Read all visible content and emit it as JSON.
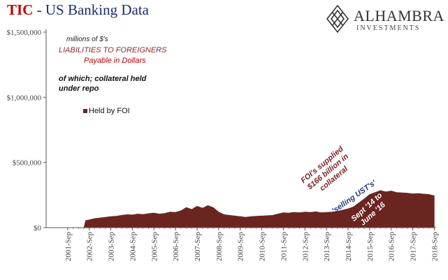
{
  "title": {
    "prefix": "TIC",
    "rest": "- US Banking Data"
  },
  "logo": {
    "brand": "ALHAMBRA",
    "sub": "INVESTMENTS",
    "icon": "diamond-lattice-icon"
  },
  "notes": {
    "units": "millions of $'s",
    "liabilities": "LIABILITIES TO FOREIGNERS",
    "payable": "Payable in Dollars",
    "collateral_line1": "of which; collateral held",
    "collateral_line2": "under repo"
  },
  "annotations": {
    "foi_supplied": [
      "FOI's supplied",
      "$166 billion in",
      "collateral"
    ],
    "selling_usts": "'selling UST's'",
    "period": [
      "Sept '14 to",
      "June '16"
    ]
  },
  "colors": {
    "series": "#6b2520",
    "title_red": "#c00000",
    "title_navy": "#1f2a6b",
    "note_red": "#8b2a2a",
    "note_navy": "#1f3a7a"
  },
  "chart_data": {
    "type": "area",
    "x": [
      "2001-Sep",
      "2002-Sep",
      "2003-Sep",
      "2004-Sep",
      "2005-Sep",
      "2006-Sep",
      "2007-Sep",
      "2008-Sep",
      "2009-Sep",
      "2010-Sep",
      "2011-Sep",
      "2012-Sep",
      "2013-Sep",
      "2014-Sep",
      "2015-Sep",
      "2016-Sep",
      "2017-Sep",
      "2018-Sep"
    ],
    "series": [
      {
        "name": "Held by FOI",
        "points": [
          [
            "2002-Jun",
            0
          ],
          [
            "2002-Jul",
            55000
          ],
          [
            "2002-Sep",
            60000
          ],
          [
            "2002-Dec",
            70000
          ],
          [
            "2003-Mar",
            75000
          ],
          [
            "2003-Jun",
            80000
          ],
          [
            "2003-Sep",
            85000
          ],
          [
            "2003-Dec",
            88000
          ],
          [
            "2004-Mar",
            95000
          ],
          [
            "2004-Jun",
            100000
          ],
          [
            "2004-Sep",
            98000
          ],
          [
            "2004-Dec",
            105000
          ],
          [
            "2005-Mar",
            102000
          ],
          [
            "2005-Jun",
            108000
          ],
          [
            "2005-Sep",
            112000
          ],
          [
            "2005-Dec",
            105000
          ],
          [
            "2006-Mar",
            110000
          ],
          [
            "2006-Jun",
            120000
          ],
          [
            "2006-Sep",
            118000
          ],
          [
            "2006-Dec",
            130000
          ],
          [
            "2007-Mar",
            155000
          ],
          [
            "2007-Jun",
            140000
          ],
          [
            "2007-Sep",
            165000
          ],
          [
            "2007-Dec",
            150000
          ],
          [
            "2008-Mar",
            170000
          ],
          [
            "2008-Jun",
            155000
          ],
          [
            "2008-Sep",
            120000
          ],
          [
            "2008-Dec",
            100000
          ],
          [
            "2009-Mar",
            95000
          ],
          [
            "2009-Jun",
            90000
          ],
          [
            "2009-Sep",
            85000
          ],
          [
            "2009-Dec",
            80000
          ],
          [
            "2010-Mar",
            85000
          ],
          [
            "2010-Jun",
            88000
          ],
          [
            "2010-Sep",
            90000
          ],
          [
            "2010-Dec",
            92000
          ],
          [
            "2011-Mar",
            95000
          ],
          [
            "2011-Jun",
            105000
          ],
          [
            "2011-Sep",
            115000
          ],
          [
            "2011-Dec",
            112000
          ],
          [
            "2012-Mar",
            118000
          ],
          [
            "2012-Jun",
            115000
          ],
          [
            "2012-Sep",
            120000
          ],
          [
            "2012-Dec",
            118000
          ],
          [
            "2013-Mar",
            122000
          ],
          [
            "2013-Jun",
            115000
          ],
          [
            "2013-Sep",
            118000
          ],
          [
            "2013-Dec",
            120000
          ],
          [
            "2014-Mar",
            125000
          ],
          [
            "2014-Jun",
            135000
          ],
          [
            "2014-Sep",
            145000
          ],
          [
            "2014-Dec",
            160000
          ],
          [
            "2015-Mar",
            190000
          ],
          [
            "2015-Jun",
            220000
          ],
          [
            "2015-Sep",
            255000
          ],
          [
            "2015-Dec",
            270000
          ],
          [
            "2016-Mar",
            285000
          ],
          [
            "2016-Jun",
            275000
          ],
          [
            "2016-Sep",
            282000
          ],
          [
            "2016-Dec",
            270000
          ],
          [
            "2017-Mar",
            268000
          ],
          [
            "2017-Jun",
            265000
          ],
          [
            "2017-Sep",
            260000
          ],
          [
            "2017-Dec",
            262000
          ],
          [
            "2018-Mar",
            258000
          ],
          [
            "2018-Jun",
            255000
          ],
          [
            "2018-Sep",
            245000
          ]
        ]
      }
    ],
    "xlim": [
      "2000-Sep",
      "2018-Oct"
    ],
    "ylim": [
      0,
      1500000
    ],
    "yticks": [
      0,
      500000,
      1000000,
      1500000
    ],
    "ytick_labels": [
      "$0",
      "$500,000",
      "$1,000,000",
      "$1,500,000"
    ],
    "grid": false,
    "legend_position": "upper-left"
  }
}
